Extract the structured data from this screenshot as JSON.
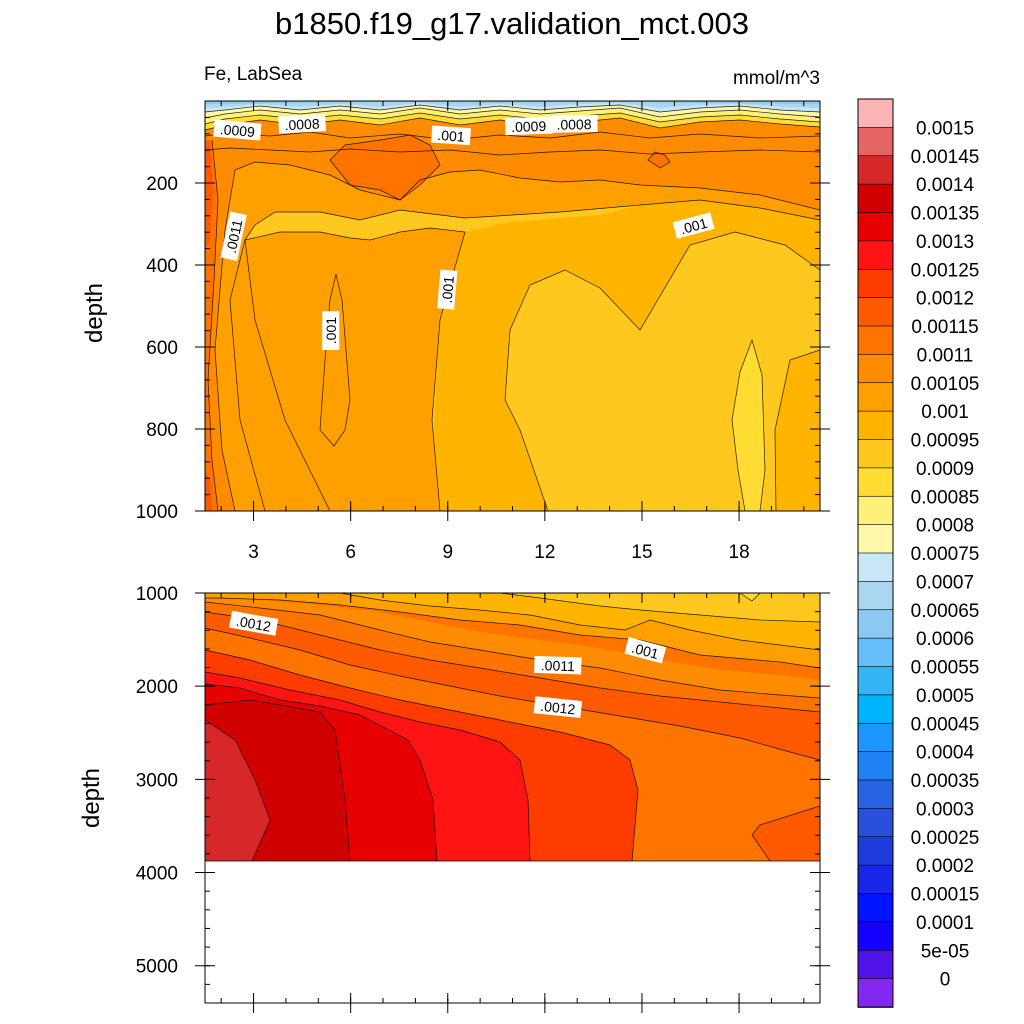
{
  "title": "b1850.f19_g17.validation_mct.003",
  "variable_label": "Fe, LabSea",
  "units_label": "mmol/m^3",
  "chart_data": [
    {
      "type": "heatmap",
      "panel": "upper",
      "ylabel": "depth",
      "xlabel": "",
      "x_ticks": [
        "3",
        "6",
        "9",
        "12",
        "15",
        "18"
      ],
      "x_tick_values": [
        3,
        6,
        9,
        12,
        15,
        18
      ],
      "xlim": [
        1.5,
        20.5
      ],
      "y_ticks": [
        "200",
        "400",
        "600",
        "800",
        "1000"
      ],
      "y_tick_values": [
        200,
        400,
        600,
        800,
        1000
      ],
      "ylim": [
        0,
        1000
      ],
      "y_inverted": true,
      "contour_labels": [
        {
          "text": ".0009",
          "x": 2.5,
          "y": 72
        },
        {
          "text": ".0008",
          "x": 4.5,
          "y": 57
        },
        {
          "text": ".001",
          "x": 9.1,
          "y": 85
        },
        {
          "text": ".0009",
          "x": 11.5,
          "y": 62
        },
        {
          "text": ".0008",
          "x": 12.9,
          "y": 57
        },
        {
          "text": ".0011",
          "x": 2.4,
          "y": 330
        },
        {
          "text": ".001",
          "x": 5.4,
          "y": 560
        },
        {
          "text": ".001",
          "x": 9.0,
          "y": 460
        },
        {
          "text": ".001",
          "x": 16.6,
          "y": 305
        }
      ]
    },
    {
      "type": "heatmap",
      "panel": "lower",
      "ylabel": "depth",
      "xlabel": "",
      "y_ticks": [
        "1000",
        "2000",
        "3000",
        "4000",
        "5000"
      ],
      "y_tick_values": [
        1000,
        2000,
        3000,
        4000,
        5000
      ],
      "ylim": [
        1000,
        5400
      ],
      "y_inverted": true,
      "data_bottom_depth": 3870,
      "contour_labels": [
        {
          "text": ".0012",
          "x": 3.0,
          "y": 1330
        },
        {
          "text": ".001",
          "x": 15.1,
          "y": 1620
        },
        {
          "text": ".0011",
          "x": 12.4,
          "y": 1780
        },
        {
          "text": ".0012",
          "x": 12.4,
          "y": 2230
        }
      ]
    }
  ],
  "colorbar": {
    "labels": [
      "0.0015",
      "0.00145",
      "0.0014",
      "0.00135",
      "0.0013",
      "0.00125",
      "0.0012",
      "0.00115",
      "0.0011",
      "0.00105",
      "0.001",
      "0.00095",
      "0.0009",
      "0.00085",
      "0.0008",
      "0.00075",
      "0.0007",
      "0.00065",
      "0.0006",
      "0.00055",
      "0.0005",
      "0.00045",
      "0.0004",
      "0.00035",
      "0.0003",
      "0.00025",
      "0.0002",
      "0.00015",
      "0.0001",
      "5e-05",
      "0"
    ],
    "colors": [
      "#ffb4b4",
      "#e66464",
      "#d62828",
      "#d10000",
      "#e60000",
      "#ff1414",
      "#ff3c00",
      "#ff5a00",
      "#ff7300",
      "#ff8c00",
      "#ffa000",
      "#ffb400",
      "#ffc81e",
      "#ffdc32",
      "#fff078",
      "#fff8aa",
      "#c8e6f5",
      "#aad7f0",
      "#8cc8f0",
      "#64befa",
      "#32b4f5",
      "#00b4ff",
      "#1e96ff",
      "#1e82f5",
      "#2864e6",
      "#2850dc",
      "#1e3cdc",
      "#1428e6",
      "#0014ff",
      "#1400ff",
      "#5014e6",
      "#8228f0"
    ]
  }
}
